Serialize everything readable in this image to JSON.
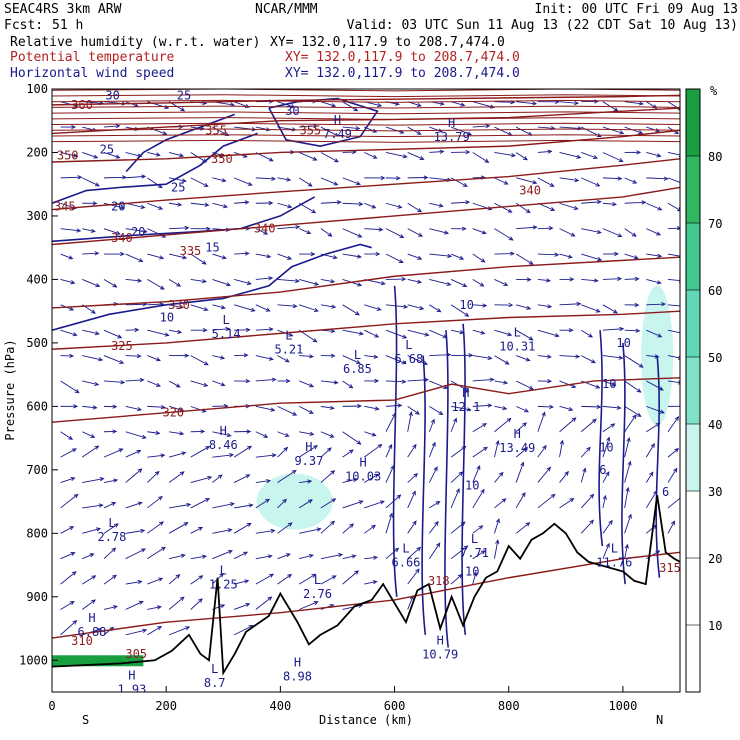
{
  "header": {
    "model": "SEAC4RS  3km ARW",
    "center": "NCAR/MMM",
    "init": "Init: 00 UTC Fri 09 Aug 13",
    "fcst_label": "Fcst:",
    "fcst_value": "51 h",
    "valid": "Valid: 03 UTC Sun 11 Aug 13 (22 CDT Sat 10 Aug 13)",
    "fields": [
      {
        "name": "Relative humidity (w.r.t. water)",
        "xy": "XY= 132.0,117.9 to 208.7,474.0",
        "color": "#000000"
      },
      {
        "name": "Potential temperature",
        "xy": "XY= 132.0,117.9 to 208.7,474.0",
        "color": "#b22222"
      },
      {
        "name": "Horizontal wind speed",
        "xy": "XY= 132.0,117.9 to 208.7,474.0",
        "color": "#1a1a8c"
      }
    ]
  },
  "chart_data": {
    "type": "heatmap",
    "xlabel": "Distance (km)",
    "ylabel": "Pressure (hPa)",
    "xlim": [
      0,
      1100
    ],
    "ylim": [
      1050,
      100
    ],
    "xticks": [
      0,
      200,
      400,
      600,
      800,
      1000
    ],
    "yticks": [
      100,
      200,
      300,
      400,
      500,
      600,
      700,
      800,
      900,
      1000
    ],
    "x_end_labels": {
      "left": "S",
      "right": "N"
    },
    "colorbar": {
      "unit": "%",
      "levels": [
        10,
        20,
        30,
        40,
        50,
        60,
        70,
        80
      ],
      "fill_colors": {
        "0-30": "#ffffff",
        "30-40": "#c8f5ee",
        "40-50": "#80e0c8",
        "50-60": "#60d8b8",
        "60-70": "#40c890",
        "70-80": "#30b860",
        "80-100": "#18a040"
      }
    },
    "rh_regions": [
      {
        "x_km": 425,
        "p_hpa": 750,
        "range": "30-40"
      },
      {
        "x_km": 1060,
        "p_hpa": 520,
        "range": "30-40"
      },
      {
        "x_km": 50,
        "p_hpa": 1000,
        "range": "80-100"
      }
    ],
    "terrain_surface": [
      {
        "x": 0,
        "p": 1010
      },
      {
        "x": 120,
        "p": 1005
      },
      {
        "x": 180,
        "p": 1000
      },
      {
        "x": 210,
        "p": 985
      },
      {
        "x": 240,
        "p": 960
      },
      {
        "x": 260,
        "p": 990
      },
      {
        "x": 275,
        "p": 1000
      },
      {
        "x": 290,
        "p": 870
      },
      {
        "x": 300,
        "p": 1020
      },
      {
        "x": 320,
        "p": 990
      },
      {
        "x": 340,
        "p": 955
      },
      {
        "x": 380,
        "p": 930
      },
      {
        "x": 400,
        "p": 895
      },
      {
        "x": 430,
        "p": 940
      },
      {
        "x": 450,
        "p": 975
      },
      {
        "x": 470,
        "p": 960
      },
      {
        "x": 500,
        "p": 945
      },
      {
        "x": 530,
        "p": 915
      },
      {
        "x": 560,
        "p": 905
      },
      {
        "x": 580,
        "p": 880
      },
      {
        "x": 600,
        "p": 910
      },
      {
        "x": 620,
        "p": 940
      },
      {
        "x": 640,
        "p": 890
      },
      {
        "x": 660,
        "p": 880
      },
      {
        "x": 680,
        "p": 950
      },
      {
        "x": 700,
        "p": 900
      },
      {
        "x": 720,
        "p": 945
      },
      {
        "x": 740,
        "p": 900
      },
      {
        "x": 760,
        "p": 870
      },
      {
        "x": 780,
        "p": 860
      },
      {
        "x": 800,
        "p": 820
      },
      {
        "x": 820,
        "p": 840
      },
      {
        "x": 840,
        "p": 810
      },
      {
        "x": 860,
        "p": 800
      },
      {
        "x": 880,
        "p": 785
      },
      {
        "x": 900,
        "p": 800
      },
      {
        "x": 920,
        "p": 830
      },
      {
        "x": 940,
        "p": 845
      },
      {
        "x": 960,
        "p": 850
      },
      {
        "x": 980,
        "p": 855
      },
      {
        "x": 1000,
        "p": 860
      },
      {
        "x": 1020,
        "p": 875
      },
      {
        "x": 1040,
        "p": 880
      },
      {
        "x": 1060,
        "p": 740
      },
      {
        "x": 1075,
        "p": 830
      },
      {
        "x": 1090,
        "p": 840
      },
      {
        "x": 1100,
        "p": 845
      }
    ],
    "theta_contours": [
      {
        "value": 310,
        "label_x": 55,
        "label_p": 970,
        "points": [
          [
            0,
            965
          ],
          [
            200,
            940
          ],
          [
            400,
            925
          ],
          [
            600,
            905
          ],
          [
            800,
            870
          ],
          [
            1000,
            840
          ],
          [
            1100,
            830
          ]
        ]
      },
      {
        "value": 320,
        "label_x": 190,
        "label_p": 610,
        "points": [
          [
            0,
            625
          ],
          [
            200,
            610
          ],
          [
            400,
            595
          ],
          [
            600,
            590
          ],
          [
            700,
            565
          ],
          [
            800,
            580
          ],
          [
            950,
            560
          ],
          [
            1100,
            555
          ]
        ]
      },
      {
        "value": 325,
        "label_x": 120,
        "label_p": 500,
        "points": [
          [
            0,
            510
          ],
          [
            200,
            500
          ],
          [
            400,
            485
          ],
          [
            600,
            470
          ],
          [
            800,
            460
          ],
          [
            1000,
            455
          ],
          [
            1100,
            450
          ]
        ]
      },
      {
        "value": 330,
        "label_x": 215,
        "label_p": 435,
        "points": [
          [
            0,
            445
          ],
          [
            200,
            435
          ],
          [
            400,
            420
          ],
          [
            600,
            395
          ],
          [
            800,
            380
          ],
          [
            1000,
            370
          ],
          [
            1100,
            365
          ]
        ]
      },
      {
        "value": 340,
        "label_x": 125,
        "label_p": 340,
        "points": [
          [
            0,
            345
          ],
          [
            200,
            330
          ],
          [
            400,
            315
          ],
          [
            600,
            300
          ],
          [
            800,
            285
          ],
          [
            1000,
            270
          ],
          [
            1100,
            255
          ]
        ]
      },
      {
        "value": 345,
        "label_x": 10,
        "label_p": 280,
        "points": [
          [
            0,
            290
          ],
          [
            200,
            275
          ],
          [
            400,
            262
          ],
          [
            600,
            250
          ],
          [
            800,
            238
          ],
          [
            1000,
            220
          ],
          [
            1100,
            210
          ]
        ]
      },
      {
        "value": 350,
        "label_x": 280,
        "label_p": 210,
        "points": [
          [
            0,
            215
          ],
          [
            200,
            210
          ],
          [
            400,
            200
          ],
          [
            600,
            195
          ],
          [
            800,
            190
          ],
          [
            1000,
            175
          ],
          [
            1100,
            165
          ]
        ]
      },
      {
        "value": 355,
        "label_x": 265,
        "label_p": 160,
        "points": [
          [
            0,
            170
          ],
          [
            200,
            160
          ],
          [
            400,
            150
          ],
          [
            600,
            148
          ],
          [
            800,
            145
          ],
          [
            1000,
            135
          ],
          [
            1100,
            130
          ]
        ]
      },
      {
        "value": 360,
        "label_x": 40,
        "label_p": 125,
        "points": [
          [
            0,
            125
          ],
          [
            200,
            122
          ],
          [
            400,
            118
          ],
          [
            600,
            116
          ],
          [
            800,
            114
          ],
          [
            1000,
            112
          ],
          [
            1100,
            110
          ]
        ]
      }
    ],
    "theta_labels": [
      {
        "text": "305",
        "x": 125,
        "p": 990
      },
      {
        "text": "310",
        "x": 30,
        "p": 970
      },
      {
        "text": "315",
        "x": 1060,
        "p": 855
      },
      {
        "text": "318",
        "x": 655,
        "p": 875
      },
      {
        "text": "320",
        "x": 190,
        "p": 610
      },
      {
        "text": "325",
        "x": 100,
        "p": 505
      },
      {
        "text": "330",
        "x": 200,
        "p": 440
      },
      {
        "text": "335",
        "x": 220,
        "p": 355
      },
      {
        "text": "340",
        "x": 100,
        "p": 335
      },
      {
        "text": "340",
        "x": 350,
        "p": 320
      },
      {
        "text": "340",
        "x": 815,
        "p": 260
      },
      {
        "text": "345",
        "x": 0,
        "p": 285
      },
      {
        "text": "350",
        "x": 5,
        "p": 205
      },
      {
        "text": "350",
        "x": 275,
        "p": 210
      },
      {
        "text": "355",
        "x": 265,
        "p": 165
      },
      {
        "text": "355",
        "x": 430,
        "p": 165
      },
      {
        "text": "360",
        "x": 30,
        "p": 125
      }
    ],
    "wind_contours": [
      {
        "value": 10,
        "points": [
          [
            0,
            480
          ],
          [
            100,
            455
          ],
          [
            200,
            440
          ],
          [
            300,
            430
          ],
          [
            380,
            410
          ],
          [
            420,
            380
          ],
          [
            480,
            360
          ],
          [
            540,
            345
          ],
          [
            560,
            350
          ]
        ]
      },
      {
        "value": 15,
        "points": [
          [
            0,
            340
          ],
          [
            150,
            330
          ],
          [
            250,
            325
          ],
          [
            330,
            320
          ],
          [
            400,
            300
          ],
          [
            460,
            270
          ]
        ]
      },
      {
        "value": 20,
        "points": [
          [
            0,
            280
          ],
          [
            60,
            260
          ],
          [
            120,
            255
          ],
          [
            200,
            250
          ],
          [
            260,
            220
          ],
          [
            300,
            190
          ],
          [
            360,
            170
          ]
        ]
      },
      {
        "value": 25,
        "points": [
          [
            130,
            230
          ],
          [
            160,
            200
          ],
          [
            200,
            180
          ],
          [
            260,
            160
          ],
          [
            320,
            140
          ]
        ]
      },
      {
        "value": 30,
        "points": [
          [
            380,
            130
          ],
          [
            430,
            120
          ],
          [
            500,
            115
          ],
          [
            570,
            135
          ],
          [
            540,
            175
          ],
          [
            470,
            190
          ],
          [
            410,
            180
          ],
          [
            380,
            130
          ]
        ]
      }
    ],
    "wind_labels": [
      {
        "text": "30",
        "x": 90,
        "p": 110
      },
      {
        "text": "25",
        "x": 215,
        "p": 110
      },
      {
        "text": "30",
        "x": 405,
        "p": 135
      },
      {
        "text": "25",
        "x": 80,
        "p": 195
      },
      {
        "text": "25",
        "x": 205,
        "p": 255
      },
      {
        "text": "20",
        "x": 100,
        "p": 285
      },
      {
        "text": "20",
        "x": 135,
        "p": 325
      },
      {
        "text": "15",
        "x": 265,
        "p": 350
      },
      {
        "text": "10",
        "x": 185,
        "p": 460
      },
      {
        "text": "10",
        "x": 710,
        "p": 440
      },
      {
        "text": "10",
        "x": 985,
        "p": 500
      },
      {
        "text": "10",
        "x": 960,
        "p": 565
      },
      {
        "text": "10",
        "x": 955,
        "p": 665
      },
      {
        "text": "10",
        "x": 720,
        "p": 725
      },
      {
        "text": "10",
        "x": 720,
        "p": 860
      },
      {
        "text": "6",
        "x": 1065,
        "p": 735
      },
      {
        "text": "6",
        "x": 955,
        "p": 700
      }
    ],
    "highs_lows": [
      {
        "type": "H",
        "value": "7.49",
        "x": 500,
        "p": 155
      },
      {
        "type": "H",
        "value": "13.79",
        "x": 700,
        "p": 160
      },
      {
        "type": "L",
        "value": "5.14",
        "x": 305,
        "p": 470
      },
      {
        "type": "L",
        "value": "5.21",
        "x": 415,
        "p": 495
      },
      {
        "type": "L",
        "value": "6.85",
        "x": 535,
        "p": 525
      },
      {
        "type": "L",
        "value": "6.68",
        "x": 625,
        "p": 510
      },
      {
        "type": "L",
        "value": "10.31",
        "x": 815,
        "p": 490
      },
      {
        "type": "H",
        "value": "12.1",
        "x": 725,
        "p": 585
      },
      {
        "type": "H",
        "value": "8.46",
        "x": 300,
        "p": 645
      },
      {
        "type": "H",
        "value": "9.37",
        "x": 450,
        "p": 670
      },
      {
        "type": "H",
        "value": "10.03",
        "x": 545,
        "p": 695
      },
      {
        "type": "H",
        "value": "13.49",
        "x": 815,
        "p": 650
      },
      {
        "type": "L",
        "value": "2.78",
        "x": 105,
        "p": 790
      },
      {
        "type": "L",
        "value": "6.66",
        "x": 620,
        "p": 830
      },
      {
        "type": "L",
        "value": "7.71",
        "x": 740,
        "p": 815
      },
      {
        "type": "L",
        "value": "11.76",
        "x": 985,
        "p": 830
      },
      {
        "type": "L",
        "value": "1.25",
        "x": 300,
        "p": 865
      },
      {
        "type": "L",
        "value": "2.76",
        "x": 465,
        "p": 880
      },
      {
        "type": "H",
        "value": "6.88",
        "x": 70,
        "p": 940
      },
      {
        "type": "H",
        "value": "10.79",
        "x": 680,
        "p": 975
      },
      {
        "type": "H",
        "value": "8.98",
        "x": 430,
        "p": 1010
      },
      {
        "type": "L",
        "value": "8.7",
        "x": 285,
        "p": 1020
      },
      {
        "type": "H",
        "value": "1.93",
        "x": 140,
        "p": 1030
      }
    ]
  }
}
